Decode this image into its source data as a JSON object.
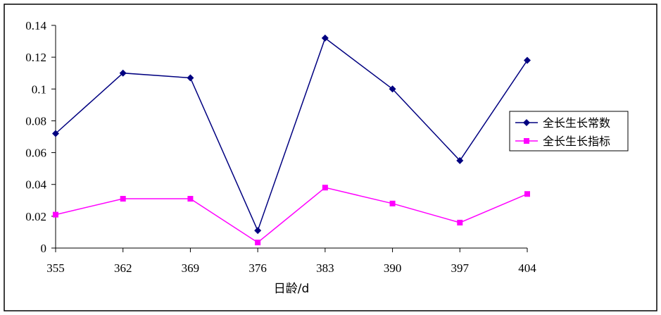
{
  "chart_data": {
    "type": "line",
    "categories": [
      "355",
      "362",
      "369",
      "376",
      "383",
      "390",
      "397",
      "404"
    ],
    "xlabel": "日龄/d",
    "ylabel": "",
    "ylim": [
      0,
      0.14
    ],
    "yticks": [
      "0",
      "0.02",
      "0.04",
      "0.06",
      "0.08",
      "0.1",
      "0.12",
      "0.14"
    ],
    "grid": false,
    "legend_position": "right",
    "series": [
      {
        "name": "全长生长常数",
        "values": [
          0.072,
          0.11,
          0.107,
          0.011,
          0.132,
          0.1,
          0.055,
          0.118
        ],
        "color": "#000080",
        "marker": "diamond"
      },
      {
        "name": "全长生长指标",
        "values": [
          0.021,
          0.031,
          0.031,
          0.0035,
          0.038,
          0.028,
          0.016,
          0.034
        ],
        "color": "#ff00ff",
        "marker": "square"
      }
    ]
  }
}
